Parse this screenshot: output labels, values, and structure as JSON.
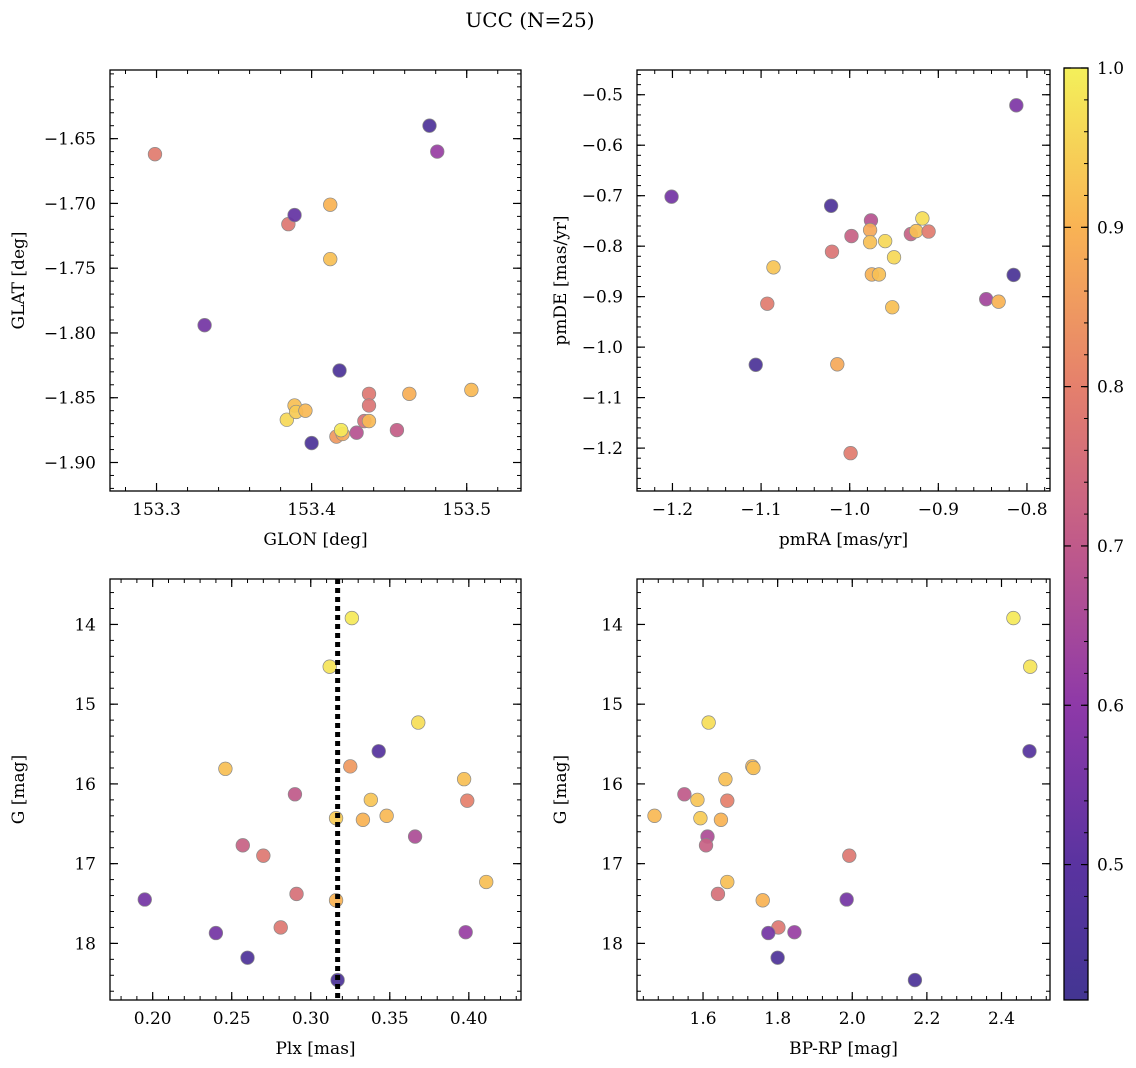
{
  "title": "UCC (N=25)",
  "colorbar": {
    "range": [
      0.415,
      1.0
    ],
    "ticks": [
      0.5,
      0.6,
      0.7,
      0.8,
      0.9,
      1.0
    ],
    "tick_labels": [
      "0.5",
      "0.6",
      "0.7",
      "0.8",
      "0.9",
      "1.0"
    ],
    "colormap": "plasma"
  },
  "chart_data": [
    {
      "type": "scatter",
      "id": "glon-glat",
      "xlabel": "GLON [deg]",
      "ylabel": "GLAT [deg]",
      "xlim": [
        153.27,
        153.535
      ],
      "ylim": [
        -1.922,
        -1.597
      ],
      "xticks": [
        153.3,
        153.4,
        153.5
      ],
      "xtick_labels": [
        "153.3",
        "153.4",
        "153.5"
      ],
      "yticks": [
        -1.9,
        -1.85,
        -1.8,
        -1.75,
        -1.7,
        -1.65
      ],
      "ytick_labels": [
        "−1.90",
        "−1.85",
        "−1.80",
        "−1.75",
        "−1.70",
        "−1.65"
      ],
      "points": [
        {
          "x": 153.299,
          "y": -1.662,
          "c": 0.79
        },
        {
          "x": 153.331,
          "y": -1.794,
          "c": 0.55
        },
        {
          "x": 153.385,
          "y": -1.716,
          "c": 0.78
        },
        {
          "x": 153.389,
          "y": -1.709,
          "c": 0.52
        },
        {
          "x": 153.412,
          "y": -1.701,
          "c": 0.9
        },
        {
          "x": 153.412,
          "y": -1.743,
          "c": 0.92
        },
        {
          "x": 153.418,
          "y": -1.829,
          "c": 0.45
        },
        {
          "x": 153.476,
          "y": -1.64,
          "c": 0.46
        },
        {
          "x": 153.481,
          "y": -1.66,
          "c": 0.62
        },
        {
          "x": 153.384,
          "y": -1.867,
          "c": 0.96
        },
        {
          "x": 153.389,
          "y": -1.856,
          "c": 0.92
        },
        {
          "x": 153.39,
          "y": -1.861,
          "c": 0.94
        },
        {
          "x": 153.396,
          "y": -1.86,
          "c": 0.91
        },
        {
          "x": 153.4,
          "y": -1.885,
          "c": 0.45
        },
        {
          "x": 153.416,
          "y": -1.88,
          "c": 0.85
        },
        {
          "x": 153.42,
          "y": -1.878,
          "c": 0.88
        },
        {
          "x": 153.419,
          "y": -1.875,
          "c": 0.99
        },
        {
          "x": 153.429,
          "y": -1.877,
          "c": 0.68
        },
        {
          "x": 153.434,
          "y": -1.868,
          "c": 0.76
        },
        {
          "x": 153.437,
          "y": -1.868,
          "c": 0.91
        },
        {
          "x": 153.437,
          "y": -1.847,
          "c": 0.78
        },
        {
          "x": 153.437,
          "y": -1.856,
          "c": 0.77
        },
        {
          "x": 153.455,
          "y": -1.875,
          "c": 0.71
        },
        {
          "x": 153.463,
          "y": -1.847,
          "c": 0.89
        },
        {
          "x": 153.503,
          "y": -1.844,
          "c": 0.91
        }
      ]
    },
    {
      "type": "scatter",
      "id": "pmra-pmde",
      "xlabel": "pmRA [mas/yr]",
      "ylabel": "pmDE [mas/yr]",
      "xlim": [
        -1.24,
        -0.774
      ],
      "ylim": [
        -1.285,
        -0.451
      ],
      "xticks": [
        -1.2,
        -1.1,
        -1.0,
        -0.9,
        -0.8
      ],
      "xtick_labels": [
        "−1.2",
        "−1.1",
        "−1.0",
        "−0.9",
        "−0.8"
      ],
      "yticks": [
        -1.2,
        -1.1,
        -1.0,
        -0.9,
        -0.8,
        -0.7,
        -0.6,
        -0.5
      ],
      "ytick_labels": [
        "−1.2",
        "−1.1",
        "−1.0",
        "−0.9",
        "−0.8",
        "−0.7",
        "−0.6",
        "−0.5"
      ],
      "points": [
        {
          "x": -0.812,
          "y": -0.521,
          "c": 0.57
        },
        {
          "x": -1.201,
          "y": -0.702,
          "c": 0.55
        },
        {
          "x": -1.021,
          "y": -0.72,
          "c": 0.46
        },
        {
          "x": -0.976,
          "y": -0.749,
          "c": 0.68
        },
        {
          "x": -0.998,
          "y": -0.78,
          "c": 0.72
        },
        {
          "x": -1.02,
          "y": -0.811,
          "c": 0.77
        },
        {
          "x": -0.977,
          "y": -0.768,
          "c": 0.88
        },
        {
          "x": -0.977,
          "y": -0.792,
          "c": 0.92
        },
        {
          "x": -0.96,
          "y": -0.79,
          "c": 0.96
        },
        {
          "x": -0.931,
          "y": -0.776,
          "c": 0.72
        },
        {
          "x": -0.925,
          "y": -0.77,
          "c": 0.92
        },
        {
          "x": -0.918,
          "y": -0.745,
          "c": 0.97
        },
        {
          "x": -0.911,
          "y": -0.771,
          "c": 0.79
        },
        {
          "x": -1.086,
          "y": -0.842,
          "c": 0.93
        },
        {
          "x": -0.95,
          "y": -0.822,
          "c": 0.96
        },
        {
          "x": -0.975,
          "y": -0.856,
          "c": 0.9
        },
        {
          "x": -0.967,
          "y": -0.856,
          "c": 0.92
        },
        {
          "x": -0.815,
          "y": -0.857,
          "c": 0.44
        },
        {
          "x": -1.093,
          "y": -0.914,
          "c": 0.79
        },
        {
          "x": -0.952,
          "y": -0.921,
          "c": 0.92
        },
        {
          "x": -0.846,
          "y": -0.905,
          "c": 0.64
        },
        {
          "x": -0.832,
          "y": -0.91,
          "c": 0.9
        },
        {
          "x": -1.106,
          "y": -1.035,
          "c": 0.45
        },
        {
          "x": -1.014,
          "y": -1.034,
          "c": 0.88
        },
        {
          "x": -0.999,
          "y": -1.21,
          "c": 0.79
        }
      ]
    },
    {
      "type": "scatter",
      "id": "plx-g",
      "xlabel": "Plx [mas]",
      "ylabel": "G [mag]",
      "xlim": [
        0.173,
        0.433
      ],
      "ylim": [
        18.71,
        13.43
      ],
      "y_inverted": true,
      "xticks": [
        0.2,
        0.25,
        0.3,
        0.35,
        0.4
      ],
      "xtick_labels": [
        "0.20",
        "0.25",
        "0.30",
        "0.35",
        "0.40"
      ],
      "yticks": [
        14,
        15,
        16,
        17,
        18
      ],
      "ytick_labels": [
        "14",
        "15",
        "16",
        "17",
        "18"
      ],
      "vline": 0.317,
      "points": [
        {
          "x": 0.326,
          "y": 13.92,
          "c": 0.99
        },
        {
          "x": 0.312,
          "y": 14.53,
          "c": 0.98
        },
        {
          "x": 0.368,
          "y": 15.23,
          "c": 0.97
        },
        {
          "x": 0.343,
          "y": 15.59,
          "c": 0.48
        },
        {
          "x": 0.246,
          "y": 15.81,
          "c": 0.92
        },
        {
          "x": 0.325,
          "y": 15.78,
          "c": 0.85
        },
        {
          "x": 0.397,
          "y": 15.94,
          "c": 0.92
        },
        {
          "x": 0.29,
          "y": 16.13,
          "c": 0.7
        },
        {
          "x": 0.338,
          "y": 16.2,
          "c": 0.93
        },
        {
          "x": 0.399,
          "y": 16.21,
          "c": 0.8
        },
        {
          "x": 0.348,
          "y": 16.4,
          "c": 0.91
        },
        {
          "x": 0.316,
          "y": 16.43,
          "c": 0.94
        },
        {
          "x": 0.333,
          "y": 16.45,
          "c": 0.9
        },
        {
          "x": 0.366,
          "y": 16.66,
          "c": 0.66
        },
        {
          "x": 0.257,
          "y": 16.77,
          "c": 0.72
        },
        {
          "x": 0.27,
          "y": 16.9,
          "c": 0.78
        },
        {
          "x": 0.411,
          "y": 17.23,
          "c": 0.92
        },
        {
          "x": 0.291,
          "y": 17.38,
          "c": 0.76
        },
        {
          "x": 0.195,
          "y": 17.45,
          "c": 0.55
        },
        {
          "x": 0.316,
          "y": 17.46,
          "c": 0.9
        },
        {
          "x": 0.281,
          "y": 17.8,
          "c": 0.78
        },
        {
          "x": 0.24,
          "y": 17.87,
          "c": 0.55
        },
        {
          "x": 0.398,
          "y": 17.86,
          "c": 0.62
        },
        {
          "x": 0.26,
          "y": 18.18,
          "c": 0.46
        },
        {
          "x": 0.317,
          "y": 18.46,
          "c": 0.45
        }
      ]
    },
    {
      "type": "scatter",
      "id": "bprp-g",
      "xlabel": "BP-RP [mag]",
      "ylabel": "G [mag]",
      "xlim": [
        1.423,
        2.53
      ],
      "ylim": [
        18.71,
        13.43
      ],
      "y_inverted": true,
      "xticks": [
        1.6,
        1.8,
        2.0,
        2.2,
        2.4
      ],
      "xtick_labels": [
        "1.6",
        "1.8",
        "2.0",
        "2.2",
        "2.4"
      ],
      "yticks": [
        14,
        15,
        16,
        17,
        18
      ],
      "ytick_labels": [
        "14",
        "15",
        "16",
        "17",
        "18"
      ],
      "points": [
        {
          "x": 2.432,
          "y": 13.92,
          "c": 0.99
        },
        {
          "x": 2.477,
          "y": 14.53,
          "c": 0.98
        },
        {
          "x": 1.615,
          "y": 15.23,
          "c": 0.97
        },
        {
          "x": 2.475,
          "y": 15.59,
          "c": 0.48
        },
        {
          "x": 1.732,
          "y": 15.78,
          "c": 0.91
        },
        {
          "x": 1.735,
          "y": 15.8,
          "c": 0.92
        },
        {
          "x": 1.66,
          "y": 15.94,
          "c": 0.92
        },
        {
          "x": 1.55,
          "y": 16.13,
          "c": 0.7
        },
        {
          "x": 1.585,
          "y": 16.2,
          "c": 0.93
        },
        {
          "x": 1.665,
          "y": 16.21,
          "c": 0.8
        },
        {
          "x": 1.47,
          "y": 16.4,
          "c": 0.91
        },
        {
          "x": 1.593,
          "y": 16.43,
          "c": 0.94
        },
        {
          "x": 1.648,
          "y": 16.45,
          "c": 0.9
        },
        {
          "x": 1.612,
          "y": 16.66,
          "c": 0.66
        },
        {
          "x": 1.608,
          "y": 16.77,
          "c": 0.72
        },
        {
          "x": 1.992,
          "y": 16.9,
          "c": 0.78
        },
        {
          "x": 1.665,
          "y": 17.23,
          "c": 0.92
        },
        {
          "x": 1.64,
          "y": 17.38,
          "c": 0.76
        },
        {
          "x": 1.985,
          "y": 17.45,
          "c": 0.55
        },
        {
          "x": 1.76,
          "y": 17.46,
          "c": 0.9
        },
        {
          "x": 1.802,
          "y": 17.8,
          "c": 0.78
        },
        {
          "x": 1.775,
          "y": 17.87,
          "c": 0.55
        },
        {
          "x": 1.845,
          "y": 17.86,
          "c": 0.62
        },
        {
          "x": 1.8,
          "y": 18.18,
          "c": 0.46
        },
        {
          "x": 2.168,
          "y": 18.46,
          "c": 0.45
        }
      ]
    }
  ]
}
